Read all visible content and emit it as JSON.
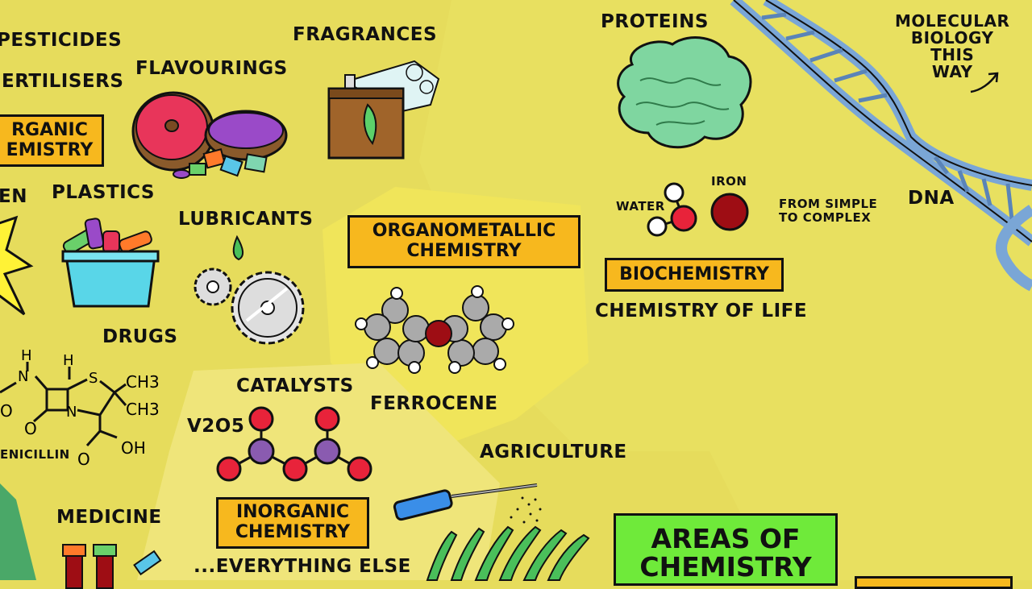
{
  "labels": {
    "pesticides": "PESTICIDES",
    "fertilisers": "ERTILISERS",
    "flavourings": "FLAVOURINGS",
    "fragrances": "FRAGRANCES",
    "proteins": "PROTEINS",
    "molecular_biology": [
      "MOLECULAR",
      "BIOLOGY",
      "THIS",
      "WAY"
    ],
    "dna": "DNA",
    "partial_en": "EN",
    "plastics": "PLASTICS",
    "lubricants": "LUBRICANTS",
    "water": "WATER",
    "iron": "IRON",
    "from_simple": [
      "FROM SIMPLE",
      "TO COMPLEX"
    ],
    "chemistry_of_life": "CHEMISTRY OF LIFE",
    "drugs": "DRUGS",
    "ferrocene": "FERROCENE",
    "catalysts": "CATALYSTS",
    "v2o5": "V2O5",
    "agriculture": "AGRICULTURE",
    "penicillin": "ENICILLIN",
    "medicine": "MEDICINE",
    "everything_else": "...EVERYTHING ELSE",
    "penicillin_h1": "H",
    "penicillin_h2": "H",
    "penicillin_s": "S",
    "penicillin_n1": "N",
    "penicillin_n2": "N",
    "penicillin_o1": "O",
    "penicillin_o2": "O",
    "penicillin_o3": "O",
    "penicillin_ch3a": "CH3",
    "penicillin_ch3b": "CH3",
    "penicillin_oh": "OH"
  },
  "boxes": {
    "organic": [
      "RGANIC",
      "EMISTRY"
    ],
    "organometallic": [
      "ORGANOMETALLIC",
      "CHEMISTRY"
    ],
    "biochemistry": "BIOCHEMISTRY",
    "inorganic": [
      "INORGANIC",
      "CHEMISTRY"
    ],
    "areas": [
      "AREAS OF",
      "CHEMISTRY"
    ]
  },
  "colors": {
    "background": "#e6dc5c",
    "box_orange": "#f7b81e",
    "box_green": "#6fea3a",
    "dna_blue": "#7aa6d6",
    "protein_green": "#7fd6a0",
    "iron_red": "#9e0d14",
    "oxygen_red": "#e8233a",
    "vanadium_purple": "#8a5bb0"
  }
}
